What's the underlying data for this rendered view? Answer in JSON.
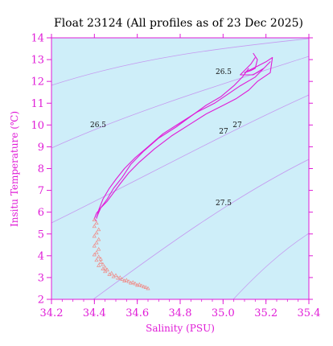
{
  "chart_data": {
    "type": "line",
    "title": "Float 23124  (All profiles as of 23 Dec 2025)",
    "xlabel": "Salinity (PSU)",
    "ylabel": "Insitu Temperature (℃)",
    "xlim": [
      34.2,
      35.4
    ],
    "ylim": [
      2,
      14
    ],
    "xticks": [
      "34.2",
      "34.4",
      "34.6",
      "34.8",
      "35.0",
      "35.2",
      "35.4"
    ],
    "yticks": [
      "2",
      "3",
      "4",
      "5",
      "6",
      "7",
      "8",
      "9",
      "10",
      "11",
      "12",
      "13",
      "14"
    ],
    "grid": false,
    "colors": {
      "background": "#ceeef9",
      "axis": "#e01cd7",
      "profile_line": "#e01cd7",
      "deep_points": "#f08a86",
      "isopycnal": "#c59af0"
    },
    "isopycnal_labels": [
      "26.5",
      "26.5",
      "27",
      "27",
      "27.5"
    ],
    "series": [
      {
        "marker": "line",
        "x": [
          35.14,
          35.16,
          35.15,
          35.13,
          35.1,
          35.12,
          35.16,
          35.2,
          35.23,
          35.22,
          35.16,
          35.12,
          35.06,
          35.0,
          34.92,
          34.84,
          34.76,
          34.68,
          34.61,
          34.56,
          34.52,
          34.49,
          34.46,
          34.43,
          34.41,
          34.4,
          34.41
        ],
        "y": [
          13.3,
          13.0,
          12.6,
          12.5,
          12.4,
          12.5,
          12.7,
          12.9,
          13.1,
          12.4,
          12.0,
          11.6,
          11.2,
          10.9,
          10.5,
          10.0,
          9.5,
          8.9,
          8.3,
          7.8,
          7.3,
          6.9,
          6.5,
          6.2,
          5.95,
          5.7,
          5.6
        ]
      },
      {
        "marker": "line",
        "x": [
          35.15,
          35.13,
          35.1,
          35.08,
          35.14,
          35.19,
          35.22,
          35.15,
          35.08,
          35.02,
          34.96,
          34.88,
          34.8,
          34.72,
          34.65,
          34.59,
          34.54,
          34.5,
          34.47,
          34.44,
          34.42,
          34.41
        ],
        "y": [
          13.1,
          12.8,
          12.5,
          12.3,
          12.3,
          12.6,
          12.9,
          12.2,
          11.8,
          11.4,
          11.0,
          10.6,
          10.1,
          9.6,
          9.0,
          8.5,
          8.0,
          7.5,
          7.1,
          6.6,
          6.1,
          5.7
        ]
      },
      {
        "marker": "line",
        "x": [
          35.12,
          35.09,
          35.05,
          34.99,
          34.92,
          34.85,
          34.78,
          34.7,
          34.63,
          34.57,
          34.53,
          34.49,
          34.46,
          34.43,
          34.41
        ],
        "y": [
          12.6,
          12.2,
          11.8,
          11.3,
          10.9,
          10.4,
          9.9,
          9.4,
          8.8,
          8.2,
          7.6,
          7.1,
          6.6,
          6.2,
          5.75
        ]
      },
      {
        "marker": "triangle",
        "x": [
          34.4,
          34.41,
          34.4,
          34.42,
          34.41,
          34.4,
          34.42,
          34.41,
          34.4,
          34.42,
          34.41,
          34.4,
          34.42,
          34.43,
          34.41,
          34.43,
          34.44,
          34.42,
          34.45,
          34.44,
          34.46,
          34.45,
          34.48,
          34.47,
          34.5,
          34.49,
          34.52,
          34.51,
          34.53,
          34.55,
          34.54,
          34.56,
          34.58,
          34.57,
          34.59,
          34.61,
          34.6,
          34.62,
          34.63,
          34.64,
          34.65
        ],
        "y": [
          5.65,
          5.5,
          5.35,
          5.2,
          5.05,
          4.9,
          4.75,
          4.6,
          4.45,
          4.3,
          4.15,
          4.05,
          3.95,
          3.85,
          3.8,
          3.7,
          3.6,
          3.55,
          3.45,
          3.4,
          3.35,
          3.28,
          3.2,
          3.15,
          3.1,
          3.05,
          3.0,
          2.97,
          2.92,
          2.88,
          2.85,
          2.82,
          2.78,
          2.75,
          2.72,
          2.68,
          2.65,
          2.62,
          2.58,
          2.55,
          2.5
        ]
      }
    ]
  }
}
